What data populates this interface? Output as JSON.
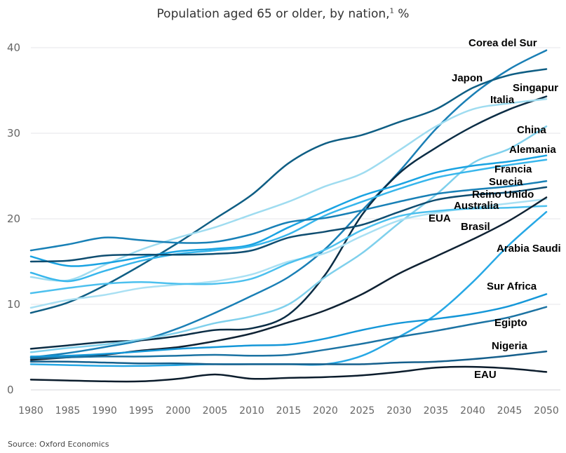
{
  "title": "Population aged 65 or older, by nation,",
  "title_footnote": "1",
  "title_unit": " %",
  "source": "Source: Oxford Economics",
  "chart_data": {
    "type": "line",
    "title": "Population aged 65 or older, by nation, %",
    "xlabel": "",
    "ylabel": "",
    "xlim": [
      1980,
      2050
    ],
    "ylim": [
      0,
      40
    ],
    "x_ticks": [
      1980,
      1985,
      1990,
      1995,
      2000,
      2005,
      2010,
      2015,
      2020,
      2025,
      2030,
      2035,
      2040,
      2045,
      2050
    ],
    "y_ticks": [
      0,
      10,
      20,
      30,
      40
    ],
    "grid": "horizontal",
    "legend": "direct-labels",
    "x": [
      1980,
      1985,
      1990,
      1995,
      2000,
      2005,
      2010,
      2015,
      2020,
      2025,
      2030,
      2035,
      2040,
      2045,
      2050
    ],
    "series": [
      {
        "name": "Corea del Sur",
        "color": "#1a7fb5",
        "values": [
          3.8,
          4.3,
          5.0,
          5.8,
          7.2,
          9.0,
          11.0,
          13.2,
          16.5,
          21.0,
          25.5,
          30.5,
          34.5,
          37.5,
          39.7
        ]
      },
      {
        "name": "Japon",
        "color": "#0f5e84",
        "values": [
          9.0,
          10.2,
          12.2,
          14.6,
          17.2,
          20.0,
          22.8,
          26.5,
          28.8,
          29.8,
          31.3,
          32.8,
          35.3,
          36.8,
          37.5
        ]
      },
      {
        "name": "Singapur",
        "color": "#0b2d45",
        "values": [
          4.8,
          5.2,
          5.6,
          5.8,
          6.3,
          7.0,
          7.2,
          8.8,
          13.5,
          20.5,
          25.3,
          28.3,
          30.8,
          32.8,
          34.3
        ]
      },
      {
        "name": "Italia",
        "color": "#9fdcf0",
        "values": [
          13.2,
          12.8,
          14.6,
          16.4,
          17.8,
          19.0,
          20.5,
          22.0,
          23.8,
          25.3,
          28.0,
          30.8,
          32.8,
          33.5,
          34.0
        ]
      },
      {
        "name": "China",
        "color": "#7fd0ec",
        "values": [
          4.4,
          4.9,
          5.3,
          5.9,
          6.7,
          7.8,
          8.6,
          10.0,
          13.2,
          16.0,
          19.5,
          22.8,
          26.5,
          28.2,
          30.8
        ]
      },
      {
        "name": "Alemania",
        "color": "#1aa3e2",
        "values": [
          15.6,
          14.5,
          14.8,
          15.5,
          16.2,
          16.5,
          17.0,
          19.0,
          20.9,
          22.7,
          24.0,
          25.4,
          26.2,
          26.7,
          27.4
        ]
      },
      {
        "name": "Francia",
        "color": "#37b6ec",
        "values": [
          13.7,
          12.7,
          13.9,
          15.1,
          15.9,
          16.3,
          16.8,
          18.2,
          20.4,
          22.0,
          23.5,
          24.8,
          25.6,
          26.3,
          26.9
        ]
      },
      {
        "name": "Suecia",
        "color": "#1880b6",
        "values": [
          16.3,
          17.0,
          17.8,
          17.5,
          17.2,
          17.3,
          18.2,
          19.6,
          20.1,
          21.0,
          22.0,
          22.9,
          23.4,
          23.8,
          24.4
        ]
      },
      {
        "name": "Reino Unido",
        "color": "#0f4d70",
        "values": [
          15.0,
          15.1,
          15.7,
          15.8,
          15.8,
          15.9,
          16.3,
          17.8,
          18.5,
          19.3,
          20.8,
          22.2,
          22.8,
          23.1,
          23.7
        ]
      },
      {
        "name": "Australia",
        "color": "#a9e0f3",
        "values": [
          9.6,
          10.5,
          11.1,
          11.9,
          12.3,
          12.7,
          13.5,
          15.0,
          16.0,
          18.0,
          19.8,
          20.7,
          21.3,
          21.8,
          22.3
        ]
      },
      {
        "name": "EUA",
        "color": "#4cc0ee",
        "values": [
          11.3,
          11.9,
          12.4,
          12.6,
          12.4,
          12.4,
          13.0,
          14.8,
          16.4,
          18.7,
          20.3,
          20.9,
          21.2,
          21.3,
          21.5
        ]
      },
      {
        "name": "Brasil",
        "color": "#0f2233",
        "values": [
          3.5,
          3.8,
          4.1,
          4.6,
          5.0,
          5.7,
          6.6,
          7.9,
          9.3,
          11.2,
          13.6,
          15.6,
          17.6,
          19.8,
          22.5
        ]
      },
      {
        "name": "Arabia Saudi",
        "color": "#27a8e5",
        "values": [
          3.0,
          2.9,
          2.8,
          2.8,
          2.9,
          3.0,
          3.0,
          3.0,
          3.0,
          4.0,
          6.2,
          8.8,
          12.6,
          17.0,
          20.8
        ]
      },
      {
        "name": "Sur Africa",
        "color": "#1597d8",
        "values": [
          3.9,
          4.0,
          4.2,
          4.5,
          4.8,
          5.0,
          5.2,
          5.3,
          6.0,
          7.0,
          7.8,
          8.3,
          8.9,
          9.8,
          11.2
        ]
      },
      {
        "name": "Egipto",
        "color": "#1c73a3",
        "values": [
          3.7,
          3.8,
          3.9,
          3.9,
          4.0,
          4.1,
          4.0,
          4.1,
          4.7,
          5.4,
          6.2,
          6.9,
          7.7,
          8.5,
          9.7
        ]
      },
      {
        "name": "Nigeria",
        "color": "#155f8c",
        "values": [
          3.3,
          3.3,
          3.2,
          3.1,
          3.1,
          3.0,
          3.0,
          3.0,
          3.0,
          3.0,
          3.2,
          3.3,
          3.6,
          4.0,
          4.5
        ]
      },
      {
        "name": "EAU",
        "color": "#0b1c2c",
        "values": [
          1.2,
          1.1,
          1.0,
          1.0,
          1.3,
          1.8,
          1.3,
          1.4,
          1.5,
          1.7,
          2.1,
          2.6,
          2.7,
          2.5,
          2.1
        ]
      }
    ]
  }
}
